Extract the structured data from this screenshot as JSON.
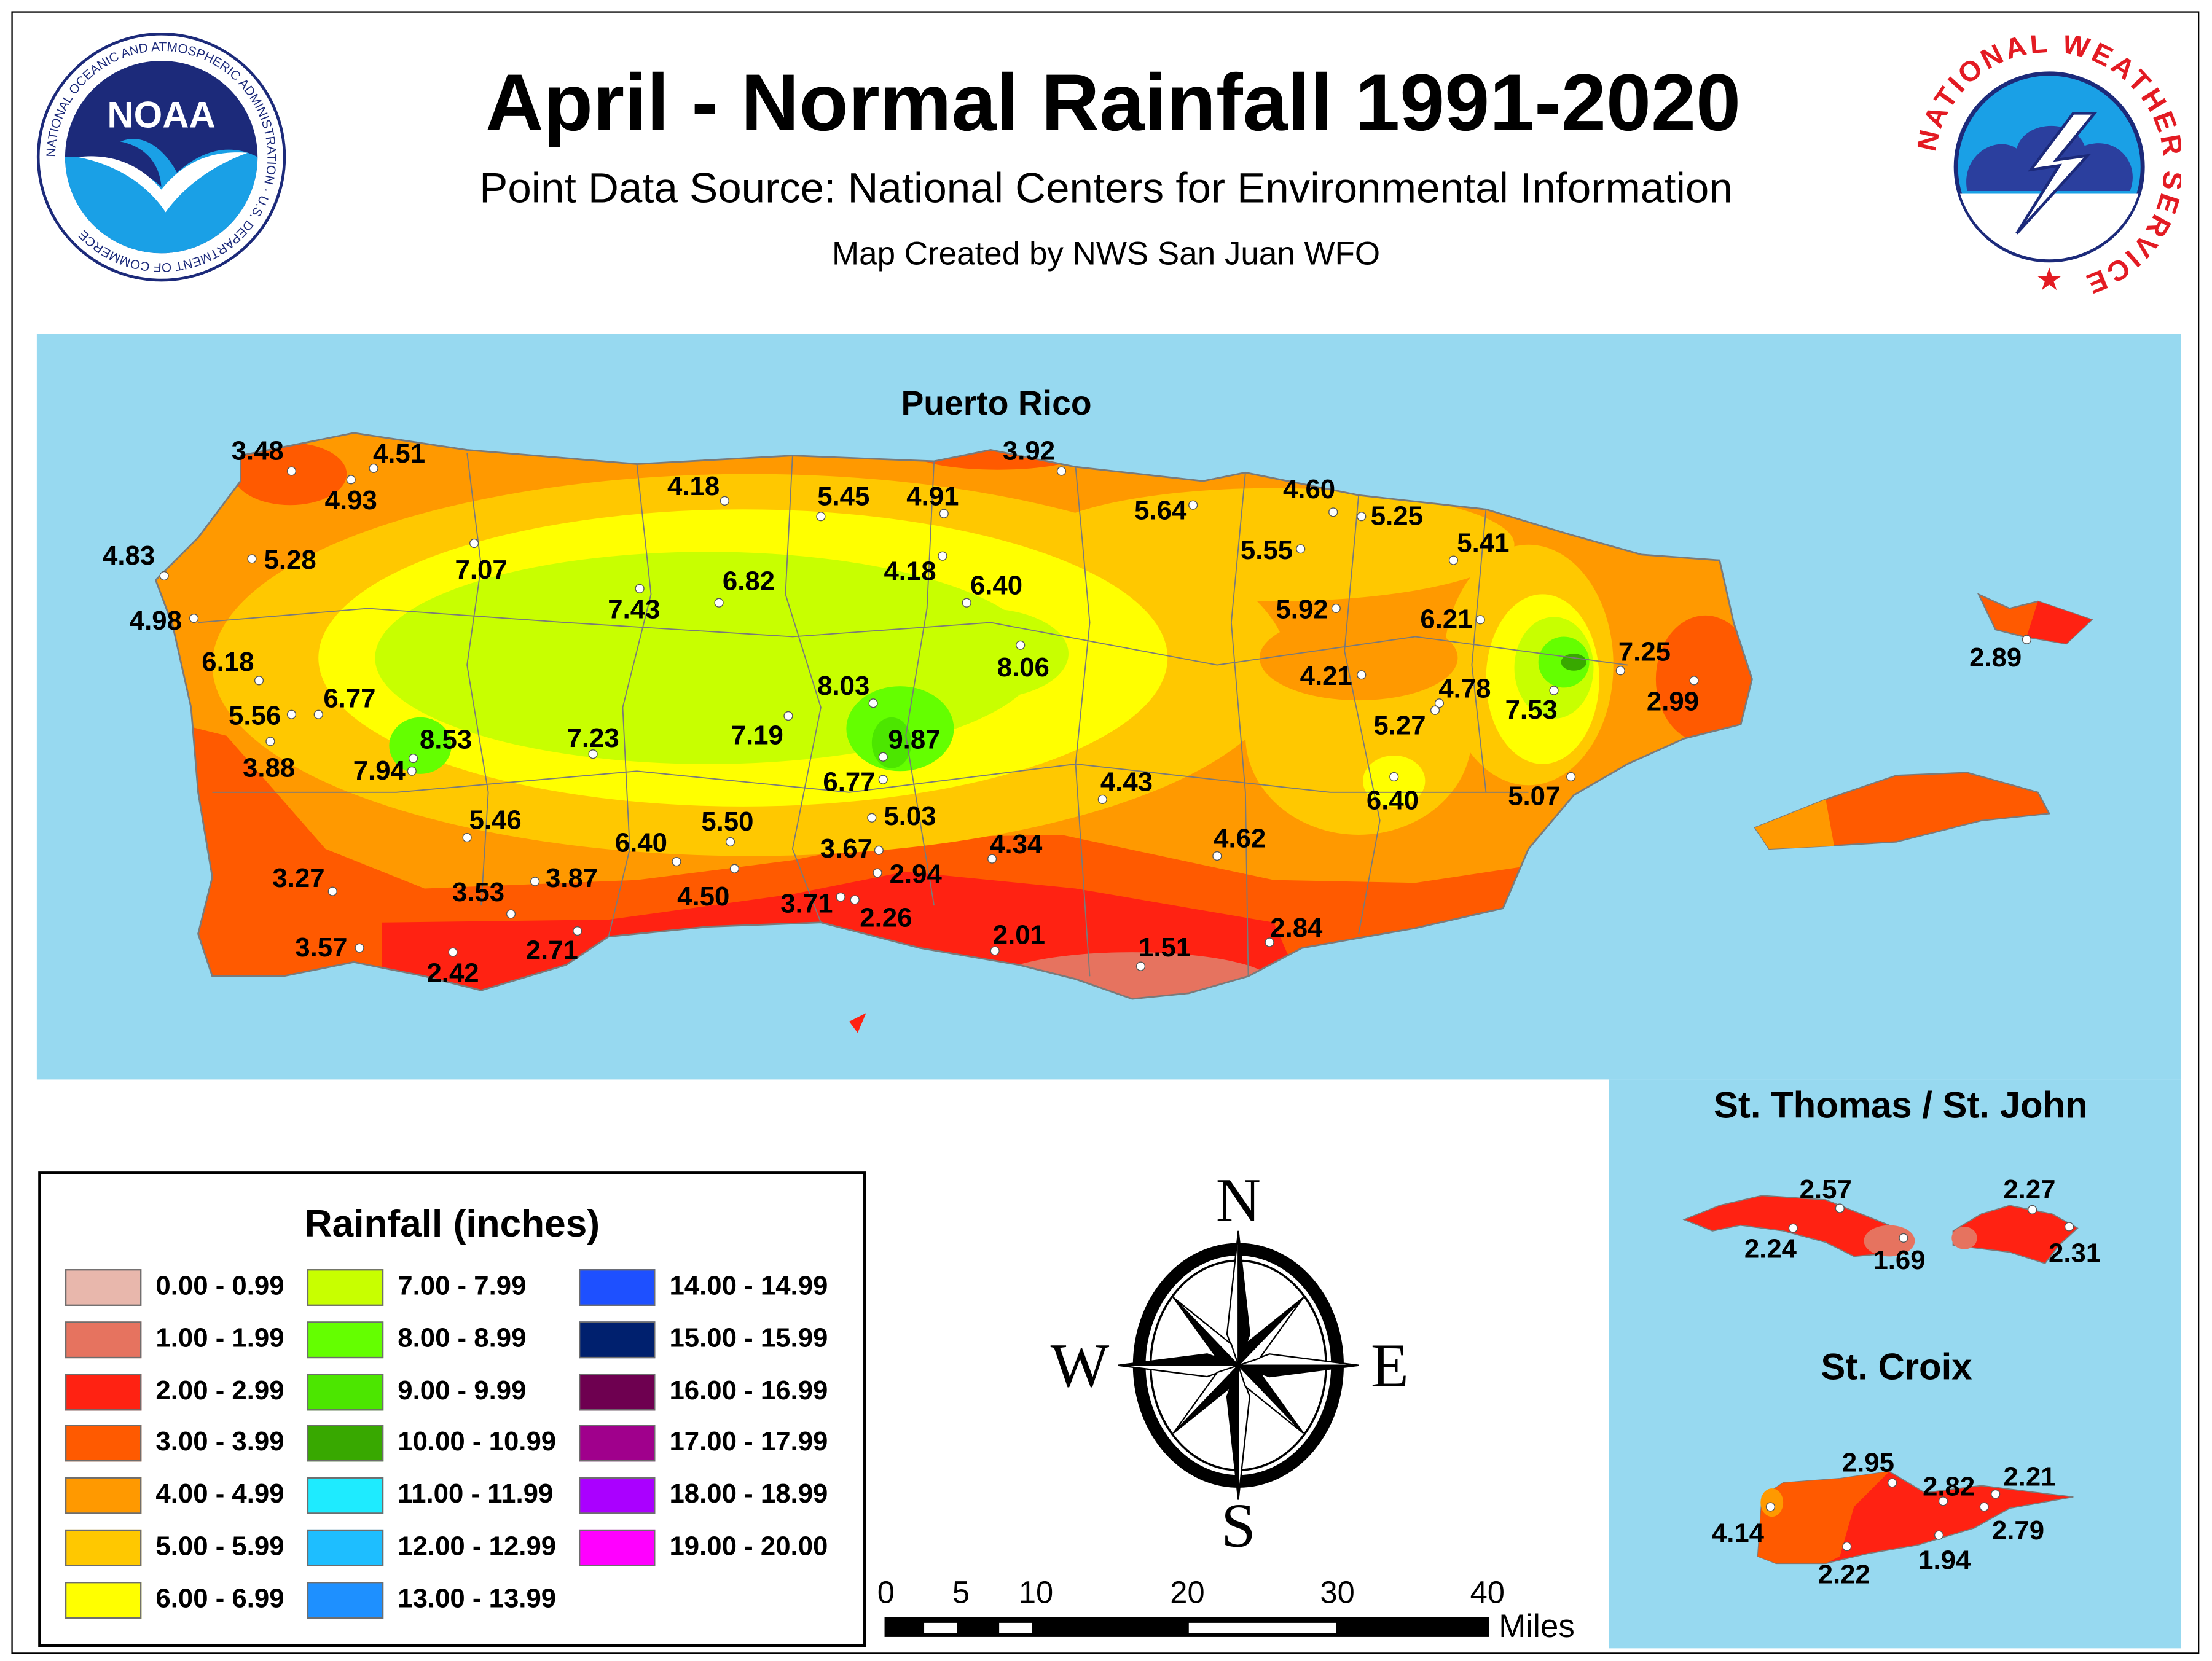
{
  "header": {
    "title": "April - Normal Rainfall 1991-2020",
    "subtitle": "Point Data Source: National Centers for Environmental Information",
    "credit": "Map Created by NWS San Juan WFO"
  },
  "logos": {
    "noaa": {
      "name": "NOAA",
      "ring_text": "NATIONAL OCEANIC AND ATMOSPHERIC ADMINISTRATION · U.S. DEPARTMENT OF COMMERCE"
    },
    "nws": {
      "ring_text": "NATIONAL WEATHER SERVICE"
    }
  },
  "map": {
    "main_title": "Puerto Rico",
    "ocean_color": "#97D9F0",
    "puerto_rico_stations": [
      "3.48",
      "4.51",
      "4.93",
      "4.18",
      "3.92",
      "5.45",
      "4.91",
      "5.64",
      "4.60",
      "5.25",
      "5.41",
      "4.83",
      "5.28",
      "7.07",
      "7.43",
      "6.82",
      "4.18",
      "6.40",
      "5.55",
      "5.92",
      "6.21",
      "4.98",
      "6.18",
      "6.77",
      "5.56",
      "8.53",
      "7.94",
      "3.88",
      "7.23",
      "7.19",
      "8.03",
      "9.87",
      "8.06",
      "6.77",
      "4.21",
      "4.78",
      "5.27",
      "7.53",
      "7.25",
      "2.99",
      "2.89",
      "5.46",
      "6.40",
      "5.50",
      "5.03",
      "4.43",
      "6.40",
      "5.07",
      "3.67",
      "4.34",
      "4.62",
      "3.27",
      "3.53",
      "3.87",
      "4.50",
      "2.94",
      "3.71",
      "2.26",
      "2.01",
      "1.51",
      "2.84",
      "3.57",
      "2.42",
      "2.71"
    ],
    "insets": [
      {
        "title": "St. Thomas / St. John",
        "stations": [
          "2.57",
          "2.24",
          "1.69",
          "2.27",
          "2.31"
        ]
      },
      {
        "title": "St. Croix",
        "stations": [
          "2.95",
          "2.82",
          "2.21",
          "2.79",
          "1.94",
          "2.22",
          "4.14"
        ]
      }
    ]
  },
  "legend": {
    "title": "Rainfall (inches)",
    "items": [
      {
        "label": "0.00 - 0.99",
        "color": "#E8B7AC"
      },
      {
        "label": "1.00 - 1.99",
        "color": "#E6735F"
      },
      {
        "label": "2.00 - 2.99",
        "color": "#FF2212"
      },
      {
        "label": "3.00 - 3.99",
        "color": "#FF5A00"
      },
      {
        "label": "4.00 - 4.99",
        "color": "#FF9900"
      },
      {
        "label": "5.00 - 5.99",
        "color": "#FFC800"
      },
      {
        "label": "6.00 - 6.99",
        "color": "#FFFF00"
      },
      {
        "label": "7.00 - 7.99",
        "color": "#C8FF00"
      },
      {
        "label": "8.00 - 8.99",
        "color": "#64FF00"
      },
      {
        "label": "9.00 - 9.99",
        "color": "#4CE600"
      },
      {
        "label": "10.00 - 10.99",
        "color": "#38A800"
      },
      {
        "label": "11.00 - 11.99",
        "color": "#1EEBFF"
      },
      {
        "label": "12.00 - 12.99",
        "color": "#1EBEFF"
      },
      {
        "label": "13.00 - 13.99",
        "color": "#1E90FF"
      },
      {
        "label": "14.00 - 14.99",
        "color": "#1E50FF"
      },
      {
        "label": "15.00 - 15.99",
        "color": "#00206E"
      },
      {
        "label": "16.00 - 16.99",
        "color": "#6E0050"
      },
      {
        "label": "17.00 - 17.99",
        "color": "#A0008C"
      },
      {
        "label": "18.00 - 18.99",
        "color": "#AA00FF"
      },
      {
        "label": "19.00 - 20.00",
        "color": "#FF00FF"
      }
    ]
  },
  "compass": {
    "n": "N",
    "s": "S",
    "e": "E",
    "w": "W"
  },
  "scale_bar": {
    "ticks": [
      "0",
      "5",
      "10",
      "20",
      "30",
      "40"
    ],
    "unit": "Miles"
  }
}
